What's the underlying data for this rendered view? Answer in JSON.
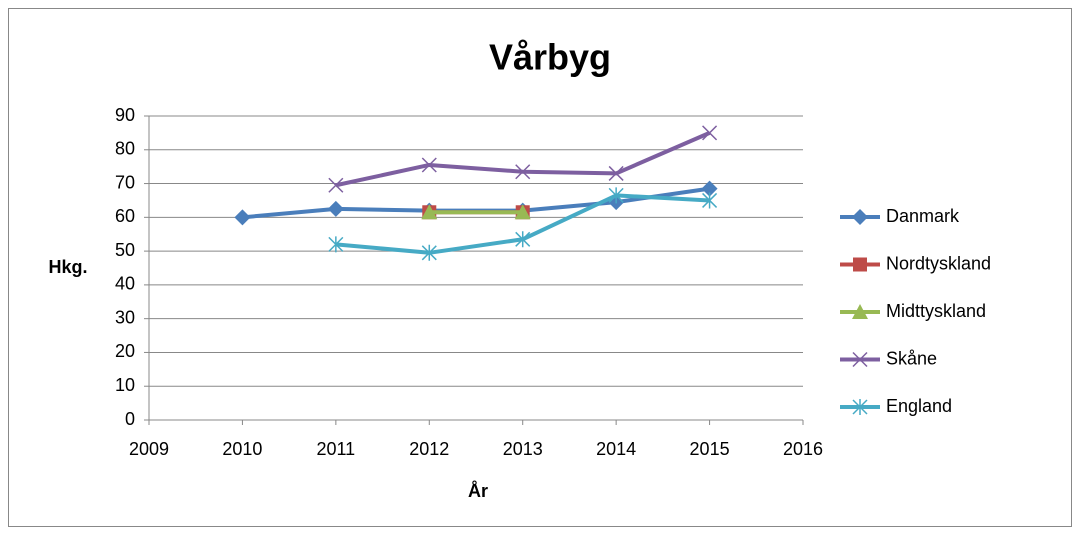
{
  "chart_data": {
    "type": "line",
    "title": "Vårbyg",
    "xlabel": "År",
    "ylabel": "Hkg.",
    "x": [
      2010,
      2011,
      2012,
      2013,
      2014,
      2015
    ],
    "series": [
      {
        "name": "Danmark",
        "color": "#4a7ebb",
        "marker": "diamond",
        "values": [
          60,
          62.5,
          62,
          62,
          64.5,
          68.5
        ]
      },
      {
        "name": "Nordtyskland",
        "color": "#be4b48",
        "marker": "square",
        "values": [
          null,
          null,
          61.5,
          61.5,
          null,
          null
        ]
      },
      {
        "name": "Midttyskland",
        "color": "#98b954",
        "marker": "triangle",
        "values": [
          null,
          null,
          61.5,
          61.5,
          null,
          null
        ]
      },
      {
        "name": "Skåne",
        "color": "#7d5fa0",
        "marker": "x",
        "values": [
          null,
          69.5,
          75.5,
          73.5,
          73,
          85
        ]
      },
      {
        "name": "England",
        "color": "#46aac5",
        "marker": "star",
        "values": [
          null,
          52,
          49.5,
          53.5,
          66.5,
          65
        ]
      }
    ],
    "xlim": [
      2009,
      2016
    ],
    "xticks": [
      2009,
      2010,
      2011,
      2012,
      2013,
      2014,
      2015,
      2016
    ],
    "ylim": [
      0,
      90
    ],
    "yticks": [
      0,
      10,
      20,
      30,
      40,
      50,
      60,
      70,
      80,
      90
    ],
    "grid": true,
    "legend": "right"
  }
}
